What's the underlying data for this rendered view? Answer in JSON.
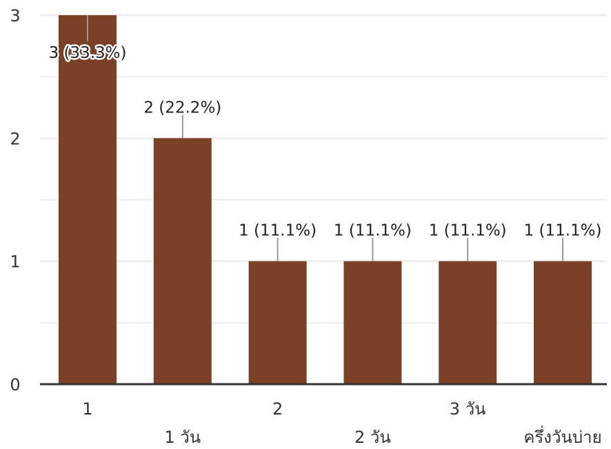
{
  "chart_data": {
    "type": "bar",
    "categories": [
      "1",
      "1 วัน",
      "2",
      "2 วัน",
      "3 วัน",
      "ครึ่งวันบ่าย"
    ],
    "values": [
      3,
      2,
      1,
      1,
      1,
      1
    ],
    "data_labels": [
      "3 (33.3%)",
      "2 (22.2%)",
      "1 (11.1%)",
      "1 (11.1%)",
      "1 (11.1%)",
      "1 (11.1%)"
    ],
    "y_ticks": [
      "0",
      "1",
      "2",
      "3"
    ],
    "ylim": [
      0,
      3
    ],
    "grid": true,
    "bar_color": "#7b4126",
    "leader_color": "#999999",
    "grid_color": "#eeeeee",
    "axis_color": "#333333"
  }
}
